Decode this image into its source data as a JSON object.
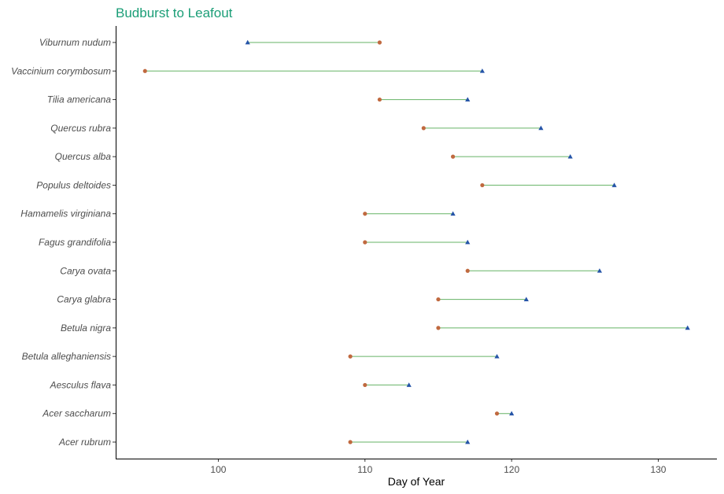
{
  "chart_data": {
    "type": "dumbbell",
    "title": "Budburst to Leafout",
    "xlabel": "Day of Year",
    "ylabel": "",
    "xlim": [
      93,
      134
    ],
    "xticks": [
      100,
      110,
      120,
      130
    ],
    "grid": false,
    "legend": "none",
    "colors": {
      "title": "#1b9e77",
      "budburst": "#c0693f",
      "leafout": "#2554a8",
      "segment": "#66b366",
      "axis": "#000000"
    },
    "series": [
      {
        "marker": "circle"
      },
      {
        "marker": "triangle"
      }
    ],
    "categories": [
      "Viburnum nudum",
      "Vaccinium corymbosum",
      "Tilia americana",
      "Quercus rubra",
      "Quercus alba",
      "Populus deltoides",
      "Hamamelis virginiana",
      "Fagus grandifolia",
      "Carya ovata",
      "Carya glabra",
      "Betula nigra",
      "Betula alleghaniensis",
      "Aesculus flava",
      "Acer saccharum",
      "Acer rubrum"
    ],
    "budburst": [
      111,
      95,
      111,
      114,
      116,
      118,
      110,
      110,
      117,
      115,
      115,
      109,
      110,
      119,
      109
    ],
    "leafout": [
      102,
      118,
      117,
      122,
      124,
      127,
      116,
      117,
      126,
      121,
      132,
      119,
      113,
      120,
      117
    ]
  }
}
